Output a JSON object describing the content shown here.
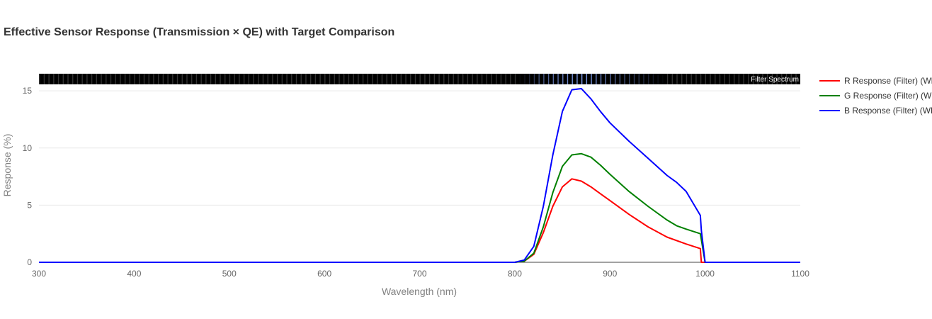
{
  "chart_data": {
    "type": "line",
    "title": "Effective Sensor Response (Transmission × QE) with Target Comparison",
    "xlabel": "Wavelength (nm)",
    "ylabel": "Response (%)",
    "xlim": [
      300,
      1100
    ],
    "ylim": [
      0,
      16.5
    ],
    "xticks": [
      "300",
      "400",
      "500",
      "600",
      "700",
      "800",
      "900",
      "1000",
      "1100"
    ],
    "yticks": [
      "0",
      "5",
      "10",
      "15"
    ],
    "grid": true,
    "legend_position": "right",
    "strip": {
      "label": "Filter Spectrum",
      "passband_nm": [
        800,
        1000
      ],
      "base_color": "#000000",
      "tint_color": "#8aaaff"
    },
    "series": [
      {
        "name": "R Response (Filter) (WB)",
        "color": "#ff0000",
        "x": [
          300,
          400,
          500,
          600,
          700,
          800,
          810,
          820,
          830,
          840,
          850,
          860,
          870,
          880,
          890,
          900,
          920,
          940,
          960,
          980,
          995,
          996,
          1000,
          1100
        ],
        "y": [
          0,
          0,
          0,
          0,
          0,
          0,
          0.1,
          0.7,
          2.6,
          4.9,
          6.6,
          7.3,
          7.1,
          6.6,
          6.0,
          5.4,
          4.2,
          3.1,
          2.2,
          1.6,
          1.2,
          0,
          0,
          0
        ]
      },
      {
        "name": "G Response (Filter) (WB)",
        "color": "#008000",
        "x": [
          300,
          400,
          500,
          600,
          700,
          800,
          810,
          820,
          830,
          840,
          850,
          860,
          870,
          880,
          890,
          900,
          920,
          940,
          960,
          970,
          980,
          995,
          1000,
          1100
        ],
        "y": [
          0,
          0,
          0,
          0,
          0,
          0,
          0.1,
          0.8,
          3.1,
          6.1,
          8.4,
          9.4,
          9.5,
          9.2,
          8.5,
          7.7,
          6.2,
          4.9,
          3.7,
          3.2,
          2.9,
          2.5,
          0,
          0
        ]
      },
      {
        "name": "B Response (Filter) (WB)",
        "color": "#0000ff",
        "x": [
          300,
          400,
          500,
          600,
          700,
          800,
          810,
          820,
          830,
          840,
          850,
          860,
          870,
          880,
          890,
          900,
          920,
          940,
          960,
          970,
          980,
          995,
          996,
          1000,
          1100
        ],
        "y": [
          0,
          0,
          0,
          0,
          0,
          0,
          0.2,
          1.4,
          4.9,
          9.4,
          13.2,
          15.1,
          15.2,
          14.3,
          13.2,
          12.2,
          10.6,
          9.1,
          7.6,
          7.0,
          6.2,
          4.1,
          2.8,
          0,
          0
        ]
      }
    ]
  }
}
